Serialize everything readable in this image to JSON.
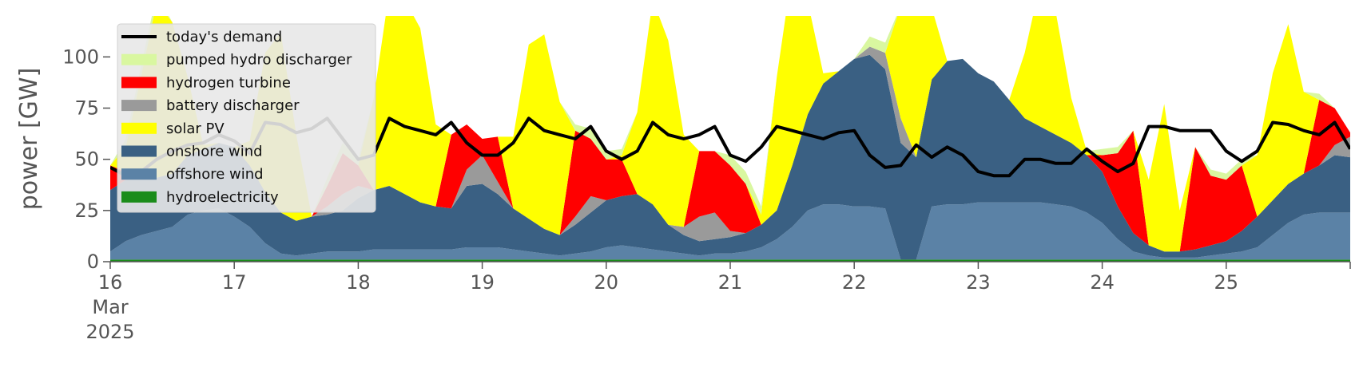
{
  "chart_data": {
    "type": "area",
    "ylabel": "power [GW]",
    "ylim": [
      0,
      120
    ],
    "xlim": [
      16,
      26
    ],
    "yticks": [
      0,
      25,
      50,
      75,
      100
    ],
    "xticks": [
      {
        "value": 16,
        "lines": [
          "16",
          "Mar",
          "2025"
        ]
      },
      {
        "value": 17,
        "lines": [
          "17"
        ]
      },
      {
        "value": 18,
        "lines": [
          "18"
        ]
      },
      {
        "value": 19,
        "lines": [
          "19"
        ]
      },
      {
        "value": 20,
        "lines": [
          "20"
        ]
      },
      {
        "value": 21,
        "lines": [
          "21"
        ]
      },
      {
        "value": 22,
        "lines": [
          "22"
        ]
      },
      {
        "value": 23,
        "lines": [
          "23"
        ]
      },
      {
        "value": 24,
        "lines": [
          "24"
        ]
      },
      {
        "value": 25,
        "lines": [
          "25"
        ]
      }
    ],
    "legend_position": "top-left",
    "x": [
      16.0,
      16.125,
      16.25,
      16.375,
      16.5,
      16.625,
      16.75,
      16.875,
      17.0,
      17.125,
      17.25,
      17.375,
      17.5,
      17.625,
      17.75,
      17.875,
      18.0,
      18.125,
      18.25,
      18.375,
      18.5,
      18.625,
      18.75,
      18.875,
      19.0,
      19.125,
      19.25,
      19.375,
      19.5,
      19.625,
      19.75,
      19.875,
      20.0,
      20.125,
      20.25,
      20.375,
      20.5,
      20.625,
      20.75,
      20.875,
      21.0,
      21.125,
      21.25,
      21.375,
      21.5,
      21.625,
      21.75,
      21.875,
      22.0,
      22.125,
      22.25,
      22.375,
      22.5,
      22.625,
      22.75,
      22.875,
      23.0,
      23.125,
      23.25,
      23.375,
      23.5,
      23.625,
      23.75,
      23.875,
      24.0,
      24.125,
      24.25,
      24.375,
      24.5,
      24.625,
      24.75,
      24.875,
      25.0,
      25.125,
      25.25,
      25.375,
      25.5,
      25.625,
      25.75,
      25.875,
      26.0
    ],
    "series": [
      {
        "name": "hydroelectricity",
        "color": "#1a8c1a",
        "values": [
          1,
          1,
          1,
          1,
          1,
          1,
          1,
          1,
          1,
          1,
          1,
          1,
          1,
          1,
          1,
          1,
          1,
          1,
          1,
          1,
          1,
          1,
          1,
          1,
          1,
          1,
          1,
          1,
          1,
          1,
          1,
          1,
          1,
          1,
          1,
          1,
          1,
          1,
          1,
          1,
          1,
          1,
          1,
          1,
          1,
          1,
          1,
          1,
          1,
          1,
          1,
          1,
          1,
          1,
          1,
          1,
          1,
          1,
          1,
          1,
          1,
          1,
          1,
          1,
          1,
          1,
          1,
          1,
          1,
          1,
          1,
          1,
          1,
          1,
          1,
          1,
          1,
          1,
          1,
          1,
          1
        ]
      },
      {
        "name": "offshore wind",
        "color": "#5b82a6",
        "values": [
          4,
          9,
          12,
          14,
          16,
          22,
          24,
          25,
          21,
          16,
          8,
          3,
          2,
          3,
          4,
          4,
          4,
          5,
          5,
          5,
          5,
          5,
          5,
          6,
          6,
          6,
          5,
          4,
          3,
          2,
          3,
          4,
          6,
          7,
          6,
          5,
          4,
          3,
          2,
          3,
          3,
          4,
          6,
          10,
          16,
          24,
          27,
          27,
          26,
          26,
          25,
          0,
          0,
          26,
          27,
          27,
          28,
          28,
          28,
          28,
          28,
          27,
          26,
          23,
          18,
          10,
          4,
          2,
          1,
          1,
          1,
          2,
          3,
          4,
          6,
          12,
          18,
          22,
          23,
          23,
          23
        ]
      },
      {
        "name": "onshore wind",
        "color": "#3a6083",
        "values": [
          30,
          30,
          28,
          26,
          26,
          29,
          30,
          32,
          34,
          30,
          25,
          20,
          17,
          18,
          18,
          20,
          26,
          29,
          31,
          27,
          23,
          21,
          20,
          30,
          31,
          26,
          20,
          16,
          12,
          10,
          14,
          19,
          23,
          24,
          26,
          22,
          13,
          9,
          7,
          7,
          8,
          9,
          11,
          14,
          30,
          47,
          59,
          65,
          72,
          74,
          68,
          57,
          50,
          62,
          70,
          71,
          63,
          59,
          50,
          41,
          37,
          34,
          31,
          28,
          25,
          16,
          9,
          5,
          3,
          3,
          4,
          5,
          6,
          10,
          15,
          17,
          19,
          20,
          23,
          28,
          27
        ]
      },
      {
        "name": "battery discharger",
        "color": "#9a9a9a",
        "values": [
          0,
          0,
          0,
          0,
          0,
          0,
          0,
          0,
          0,
          0,
          0,
          0,
          0,
          0,
          4,
          8,
          6,
          0,
          0,
          0,
          0,
          0,
          0,
          8,
          14,
          6,
          0,
          0,
          0,
          0,
          4,
          8,
          0,
          0,
          0,
          0,
          0,
          4,
          12,
          13,
          3,
          0,
          0,
          0,
          0,
          0,
          0,
          0,
          0,
          4,
          8,
          12,
          0,
          0,
          0,
          0,
          0,
          0,
          0,
          0,
          0,
          0,
          0,
          0,
          0,
          0,
          0,
          0,
          0,
          0,
          0,
          0,
          0,
          0,
          0,
          0,
          0,
          0,
          0,
          5,
          10
        ]
      },
      {
        "name": "hydrogen turbine",
        "color": "#ff0000",
        "values": [
          12,
          4,
          0,
          0,
          0,
          0,
          0,
          0,
          0,
          0,
          0,
          0,
          0,
          0,
          10,
          20,
          10,
          0,
          0,
          0,
          0,
          0,
          36,
          22,
          8,
          22,
          0,
          0,
          0,
          0,
          42,
          28,
          20,
          18,
          0,
          0,
          0,
          0,
          32,
          30,
          32,
          24,
          0,
          0,
          0,
          0,
          0,
          0,
          0,
          0,
          0,
          0,
          0,
          0,
          0,
          0,
          0,
          0,
          0,
          0,
          0,
          0,
          0,
          0,
          8,
          26,
          50,
          0,
          0,
          0,
          50,
          34,
          30,
          32,
          0,
          0,
          0,
          0,
          32,
          18,
          2
        ]
      },
      {
        "name": "solar PV",
        "color": "#ffff00",
        "values": [
          0,
          12,
          50,
          86,
          74,
          38,
          2,
          0,
          0,
          12,
          68,
          88,
          42,
          0,
          0,
          0,
          0,
          45,
          95,
          95,
          85,
          40,
          0,
          0,
          0,
          0,
          35,
          85,
          95,
          65,
          0,
          0,
          0,
          2,
          40,
          100,
          90,
          45,
          0,
          0,
          0,
          0,
          5,
          65,
          95,
          55,
          5,
          0,
          0,
          0,
          0,
          55,
          90,
          35,
          0,
          0,
          0,
          0,
          0,
          32,
          70,
          60,
          22,
          2,
          0,
          0,
          0,
          32,
          72,
          20,
          0,
          0,
          0,
          0,
          30,
          62,
          78,
          40,
          0,
          0,
          0
        ]
      },
      {
        "name": "pumped hydro discharger",
        "color": "#d9f7a0",
        "values": [
          0,
          4,
          5,
          4,
          0,
          0,
          0,
          0,
          0,
          0,
          0,
          0,
          0,
          0,
          4,
          5,
          3,
          0,
          0,
          0,
          0,
          0,
          0,
          0,
          0,
          0,
          0,
          0,
          0,
          0,
          3,
          5,
          4,
          3,
          0,
          0,
          0,
          0,
          0,
          0,
          5,
          6,
          4,
          0,
          0,
          0,
          0,
          0,
          0,
          5,
          5,
          0,
          0,
          0,
          0,
          0,
          0,
          0,
          0,
          0,
          0,
          0,
          0,
          0,
          3,
          3,
          0,
          0,
          0,
          0,
          0,
          3,
          3,
          3,
          0,
          0,
          0,
          0,
          3,
          0,
          0
        ]
      }
    ],
    "demand": {
      "name": "today's demand",
      "color": "#000000",
      "values": [
        46,
        42,
        44,
        50,
        54,
        57,
        58,
        62,
        59,
        53,
        68,
        67,
        63,
        65,
        70,
        60,
        50,
        52,
        70,
        66,
        64,
        62,
        68,
        58,
        52,
        52,
        58,
        70,
        64,
        62,
        60,
        66,
        54,
        50,
        54,
        68,
        62,
        60,
        62,
        66,
        52,
        49,
        56,
        66,
        64,
        62,
        60,
        63,
        64,
        52,
        46,
        47,
        57,
        51,
        56,
        52,
        44,
        42,
        42,
        50,
        50,
        48,
        48,
        55,
        49,
        44,
        48,
        66,
        66,
        64,
        64,
        64,
        54,
        49,
        54,
        68,
        67,
        64,
        62,
        68,
        55
      ]
    },
    "legend": [
      "today's demand",
      "pumped hydro discharger",
      "hydrogen turbine",
      "battery discharger",
      "solar PV",
      "onshore wind",
      "offshore wind",
      "hydroelectricity"
    ]
  }
}
